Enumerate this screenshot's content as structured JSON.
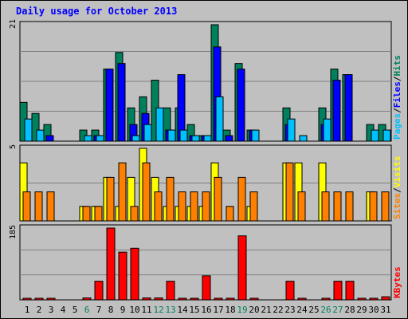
{
  "chart_data": [
    {
      "type": "bar",
      "title": "Daily usage for October 2013",
      "ylabel_parts": [
        {
          "text": "Hits",
          "color": "#00805c"
        },
        {
          "text": "/",
          "color": "#000000"
        },
        {
          "text": "Files",
          "color": "#0000ff"
        },
        {
          "text": "/",
          "color": "#000000"
        },
        {
          "text": "Pages",
          "color": "#00c0ff"
        }
      ],
      "ylim": [
        0,
        21
      ],
      "ymax_label": "21",
      "series": [
        {
          "name": "Hits",
          "color": "#00805c",
          "values": [
            7,
            5,
            3,
            0,
            0,
            2,
            2,
            13,
            16,
            6,
            8,
            11,
            6,
            6,
            3,
            1,
            21,
            2,
            14,
            2,
            0,
            0,
            6,
            0,
            0,
            6,
            13,
            12,
            0,
            3,
            3
          ]
        },
        {
          "name": "Files",
          "color": "#0000ff",
          "values": [
            0,
            0,
            1,
            0,
            0,
            0,
            1,
            13,
            14,
            3,
            5,
            0,
            2,
            12,
            1,
            1,
            17,
            1,
            13,
            2,
            0,
            0,
            3,
            0,
            0,
            3,
            11,
            12,
            0,
            0,
            0
          ]
        },
        {
          "name": "Pages",
          "color": "#00c0ff",
          "values": [
            4,
            2,
            0,
            0,
            0,
            1,
            1,
            0,
            0,
            1,
            3,
            6,
            2,
            2,
            1,
            1,
            8,
            0,
            0,
            2,
            0,
            0,
            4,
            1,
            0,
            4,
            0,
            0,
            0,
            2,
            2
          ]
        }
      ]
    },
    {
      "type": "bar",
      "ylabel_parts": [
        {
          "text": "Visits",
          "color": "#ffff00"
        },
        {
          "text": "/",
          "color": "#000000"
        },
        {
          "text": "Sites",
          "color": "#ff8000"
        }
      ],
      "ylim": [
        0,
        5
      ],
      "ymax_label": "5",
      "series": [
        {
          "name": "Visits",
          "color": "#ffff00",
          "values": [
            4,
            0,
            0,
            0,
            0,
            1,
            1,
            3,
            1,
            3,
            5,
            3,
            1,
            1,
            1,
            1,
            4,
            0,
            0,
            1,
            0,
            0,
            4,
            4,
            0,
            4,
            0,
            0,
            0,
            2,
            0
          ]
        },
        {
          "name": "Sites",
          "color": "#ff8000",
          "values": [
            2,
            2,
            2,
            0,
            0,
            1,
            1,
            3,
            4,
            1,
            4,
            2,
            3,
            2,
            2,
            2,
            3,
            1,
            3,
            2,
            0,
            0,
            4,
            2,
            0,
            2,
            2,
            2,
            0,
            2,
            2
          ]
        }
      ]
    },
    {
      "type": "bar",
      "ylabel_parts": [
        {
          "text": "KBytes",
          "color": "#ff0000"
        }
      ],
      "ylim": [
        0,
        185
      ],
      "ymax_label": "185",
      "series": [
        {
          "name": "KBytes",
          "color": "#ff0000",
          "values": [
            4,
            4,
            4,
            0,
            0,
            5,
            48,
            185,
            123,
            133,
            5,
            5,
            48,
            3,
            3,
            62,
            4,
            4,
            165,
            4,
            0,
            0,
            48,
            3,
            0,
            4,
            48,
            48,
            3,
            3,
            8
          ]
        }
      ]
    }
  ],
  "x_axis": {
    "labels": [
      "1",
      "2",
      "3",
      "4",
      "5",
      "6",
      "7",
      "8",
      "9",
      "10",
      "11",
      "12",
      "13",
      "14",
      "15",
      "16",
      "17",
      "18",
      "19",
      "20",
      "21",
      "22",
      "23",
      "24",
      "25",
      "26",
      "27",
      "28",
      "29",
      "30",
      "31"
    ],
    "weekend_days": [
      6,
      12,
      13,
      19,
      26,
      27
    ],
    "weekend_color": "#00805c",
    "weekday_color": "#000000"
  },
  "colors": {
    "background": "#c0c0c0",
    "title": "#0000ff",
    "grid": "#808080"
  }
}
